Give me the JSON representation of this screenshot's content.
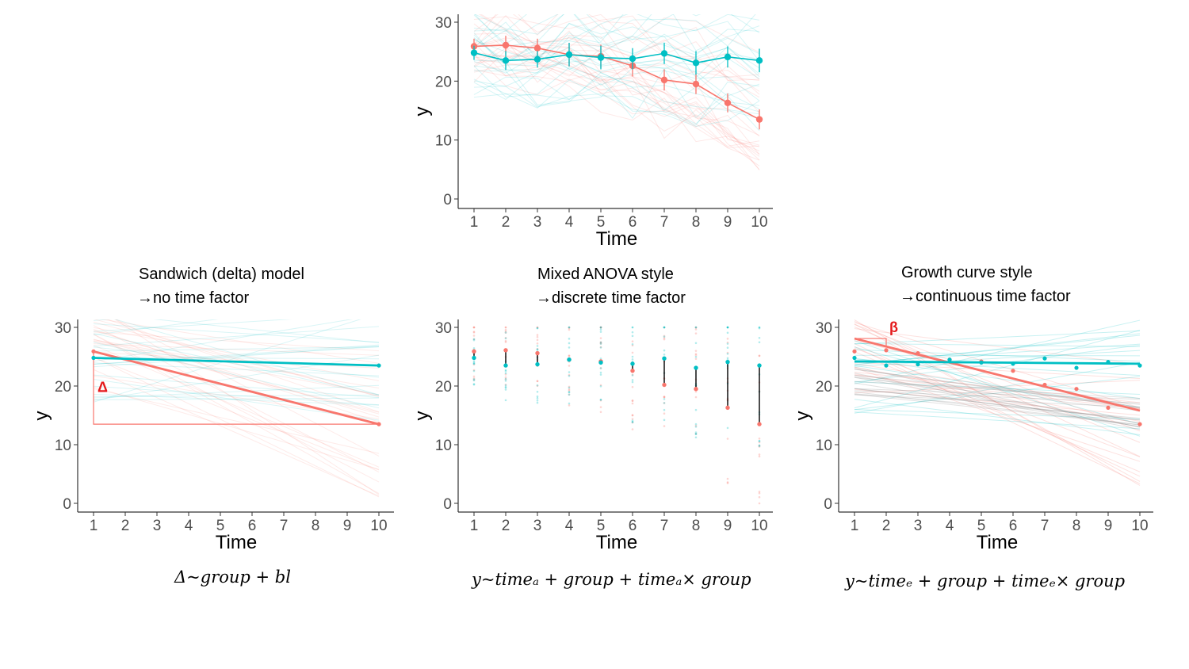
{
  "colors": {
    "red": "#F8766D",
    "teal": "#00BFC4",
    "axis": "#333333",
    "ann": "#e41a1c"
  },
  "panels": {
    "top": {
      "title1": "",
      "title2": "",
      "formula": ""
    },
    "delta": {
      "title1": "Sandwich (delta) model",
      "title2": "→no time factor",
      "formula": "Δ~group + bl",
      "annotation": "Δ"
    },
    "anova": {
      "title1": "Mixed ANOVA style",
      "title2": "→discrete time factor",
      "formula": "y~timeₐ + group +  timeₐ× group"
    },
    "growth": {
      "title1": "Growth curve style",
      "title2": "→continuous time factor",
      "formula": "y~timeₑ + group +  timeₑ× group",
      "annotation": "β"
    }
  },
  "chart_data": [
    {
      "type": "line",
      "panel": "top",
      "xlabel": "Time",
      "ylabel": "y",
      "x": [
        1,
        2,
        3,
        4,
        5,
        6,
        7,
        8,
        9,
        10
      ],
      "xlim": [
        1,
        10
      ],
      "ylim": [
        0,
        30
      ],
      "xticks": [
        "1",
        "2",
        "3",
        "4",
        "5",
        "6",
        "7",
        "8",
        "9",
        "10"
      ],
      "yticks": [
        "0",
        "10",
        "20",
        "30"
      ],
      "series": [
        {
          "color": "red",
          "values": [
            25.9,
            26.1,
            25.6,
            24.5,
            24.2,
            22.6,
            20.2,
            19.5,
            16.3,
            13.5
          ],
          "err": [
            1.3,
            1.6,
            1.6,
            2.0,
            2.0,
            1.8,
            1.8,
            1.7,
            1.6,
            1.7
          ]
        },
        {
          "color": "teal",
          "values": [
            24.8,
            23.5,
            23.7,
            24.5,
            24.0,
            23.8,
            24.7,
            23.1,
            24.1,
            23.5
          ],
          "err": [
            1.2,
            1.6,
            1.4,
            2.0,
            2.0,
            1.8,
            1.8,
            2.0,
            1.8,
            2.0
          ]
        }
      ],
      "individual_lines": true
    },
    {
      "type": "line",
      "panel": "delta",
      "xlabel": "Time",
      "ylabel": "y",
      "x": [
        1,
        10
      ],
      "xlim": [
        1,
        10
      ],
      "ylim": [
        0,
        30
      ],
      "xticks": [
        "1",
        "2",
        "3",
        "4",
        "5",
        "6",
        "7",
        "8",
        "9",
        "10"
      ],
      "yticks": [
        "0",
        "10",
        "20",
        "30"
      ],
      "series": [
        {
          "color": "red",
          "values": [
            25.9,
            13.5
          ]
        },
        {
          "color": "teal",
          "values": [
            24.8,
            23.5
          ]
        }
      ],
      "individual_lines": true
    },
    {
      "type": "scatter",
      "panel": "anova",
      "xlabel": "Time",
      "ylabel": "y",
      "x": [
        1,
        2,
        3,
        4,
        5,
        6,
        7,
        8,
        9,
        10
      ],
      "xlim": [
        1,
        10
      ],
      "ylim": [
        0,
        30
      ],
      "xticks": [
        "1",
        "2",
        "3",
        "4",
        "5",
        "6",
        "7",
        "8",
        "9",
        "10"
      ],
      "yticks": [
        "0",
        "10",
        "20",
        "30"
      ],
      "series": [
        {
          "color": "red",
          "values": [
            25.9,
            26.1,
            25.6,
            24.5,
            24.2,
            22.6,
            20.2,
            19.5,
            16.3,
            13.5
          ]
        },
        {
          "color": "teal",
          "values": [
            24.8,
            23.5,
            23.7,
            24.5,
            24.0,
            23.8,
            24.7,
            23.1,
            24.1,
            23.5
          ]
        }
      ],
      "individual_points": true
    },
    {
      "type": "line",
      "panel": "growth",
      "xlabel": "Time",
      "ylabel": "y",
      "x": [
        1,
        2,
        3,
        4,
        5,
        6,
        7,
        8,
        9,
        10
      ],
      "xlim": [
        1,
        10
      ],
      "ylim": [
        0,
        30
      ],
      "xticks": [
        "1",
        "2",
        "3",
        "4",
        "5",
        "6",
        "7",
        "8",
        "9",
        "10"
      ],
      "yticks": [
        "0",
        "10",
        "20",
        "30"
      ],
      "series": [
        {
          "color": "red",
          "values": [
            25.9,
            26.1,
            25.6,
            24.5,
            24.2,
            22.6,
            20.2,
            19.5,
            16.3,
            13.5
          ],
          "fit": [
            28.1,
            15.8
          ]
        },
        {
          "color": "teal",
          "values": [
            24.8,
            23.5,
            23.7,
            24.5,
            24.0,
            23.8,
            24.7,
            23.1,
            24.1,
            23.5
          ],
          "fit": [
            24.2,
            23.8
          ]
        }
      ],
      "individual_lines": true
    }
  ]
}
